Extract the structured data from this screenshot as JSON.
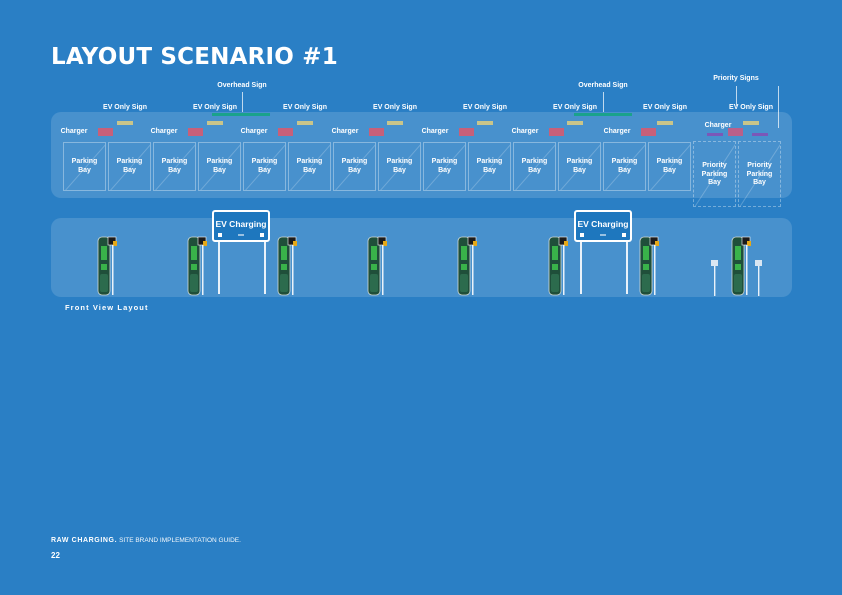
{
  "title": "LAYOUT SCENARIO #1",
  "labels": {
    "overhead_sign": "Overhead Sign",
    "priority_signs": "Priority Signs",
    "ev_only_sign": "EV Only Sign",
    "charger": "Charger",
    "parking_bay": "Parking Bay",
    "priority_bay": "Priority Parking Bay"
  },
  "bays": [
    {
      "label": "Parking Bay",
      "priority": false
    },
    {
      "label": "Parking Bay",
      "priority": false
    },
    {
      "label": "Parking Bay",
      "priority": false
    },
    {
      "label": "Parking Bay",
      "priority": false
    },
    {
      "label": "Parking Bay",
      "priority": false
    },
    {
      "label": "Parking Bay",
      "priority": false
    },
    {
      "label": "Parking Bay",
      "priority": false
    },
    {
      "label": "Parking Bay",
      "priority": false
    },
    {
      "label": "Parking Bay",
      "priority": false
    },
    {
      "label": "Parking Bay",
      "priority": false
    },
    {
      "label": "Parking Bay",
      "priority": false
    },
    {
      "label": "Parking Bay",
      "priority": false
    },
    {
      "label": "Parking Bay",
      "priority": false
    },
    {
      "label": "Parking Bay",
      "priority": false
    },
    {
      "label": "Priority Parking Bay",
      "priority": true
    },
    {
      "label": "Priority Parking Bay",
      "priority": true
    }
  ],
  "front_view": {
    "gantry_title": "EV Charging",
    "label": "Front View Layout"
  },
  "colors": {
    "background": "#2a7fc5",
    "ev_sign": "#c9c58a",
    "charger": "#c7607a",
    "overhead_bar": "#1aa28b",
    "priority_sign": "#7b57b8",
    "charger_unit_green": "#39b34a"
  },
  "footer": {
    "brand": "RAW CHARGING.",
    "subtitle": "SITE BRAND IMPLEMENTATION GUIDE.",
    "page": "22"
  }
}
